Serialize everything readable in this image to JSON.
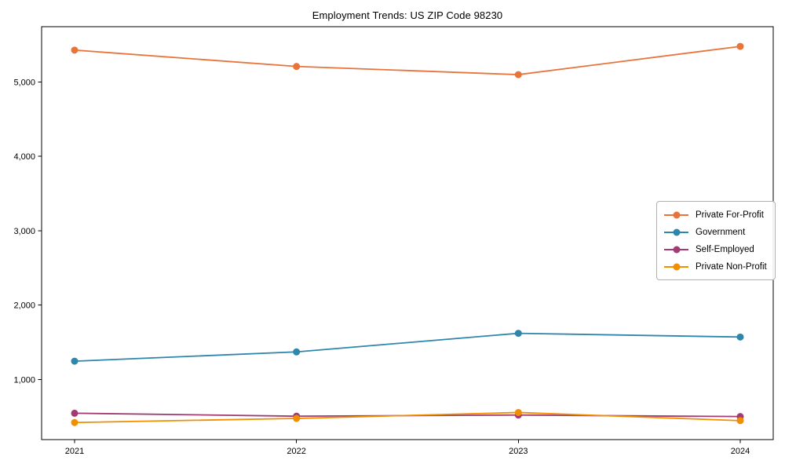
{
  "chart_data": {
    "type": "line",
    "title": "Employment Trends: US ZIP Code 98230",
    "xlabel": "",
    "ylabel": "",
    "categories": [
      "2021",
      "2022",
      "2023",
      "2024"
    ],
    "series": [
      {
        "name": "Private For-Profit",
        "color": "#E8743B",
        "values": [
          5430,
          5210,
          5100,
          5480
        ]
      },
      {
        "name": "Government",
        "color": "#2E86AB",
        "values": [
          1245,
          1370,
          1620,
          1570
        ]
      },
      {
        "name": "Self-Employed",
        "color": "#A23B72",
        "values": [
          545,
          505,
          520,
          500
        ]
      },
      {
        "name": "Private Non-Profit",
        "color": "#F18F01",
        "values": [
          420,
          475,
          555,
          445
        ]
      }
    ],
    "ylim": [
      190,
      5745
    ],
    "yticks": [
      1000,
      2000,
      3000,
      4000,
      5000
    ],
    "ytick_labels": [
      "1,000",
      "2,000",
      "3,000",
      "4,000",
      "5,000"
    ],
    "grid": false,
    "legend_position": "center-right",
    "marker": "circle",
    "axis_color": "#000000"
  }
}
